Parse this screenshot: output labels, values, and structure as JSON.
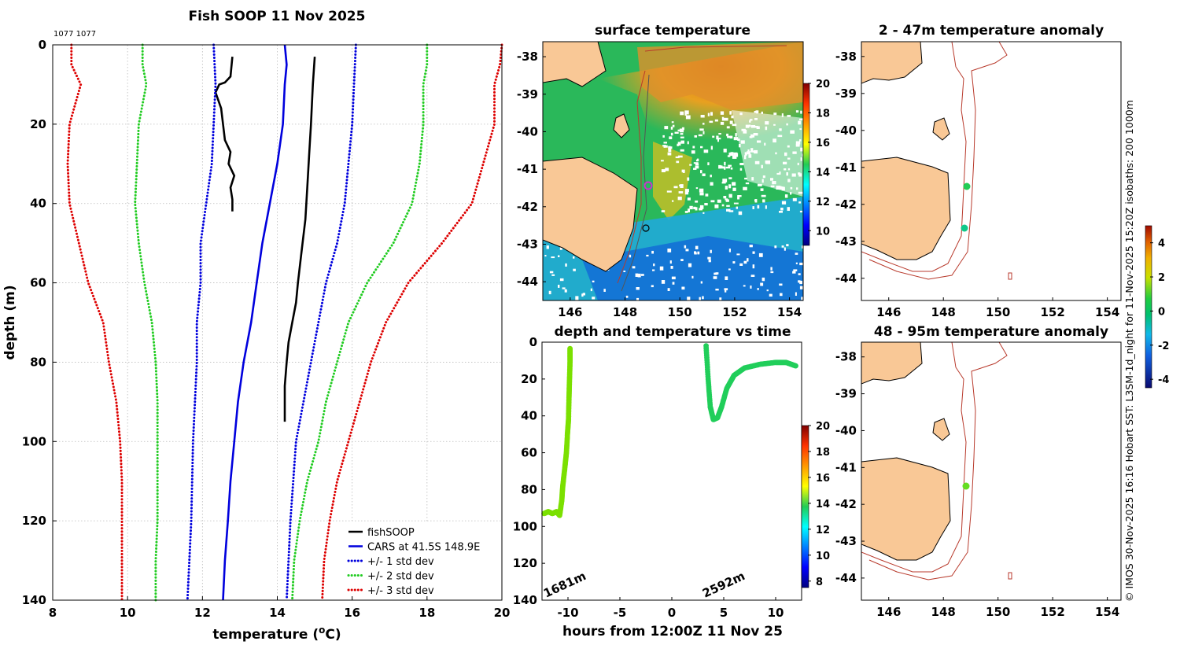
{
  "chart_data": [
    {
      "id": "profile",
      "type": "line",
      "title": "Fish SOOP 11 Nov 2025",
      "corner_note": "1077 1077",
      "xlabel": "temperature (°C)",
      "xlabel_main": "temperature (",
      "xlabel_sup": "o",
      "xlabel_tail": "C)",
      "ylabel": "depth (m)",
      "xlim": [
        8,
        20
      ],
      "ylim": [
        0,
        140
      ],
      "y_reversed": true,
      "xticks": [
        "8",
        "10",
        "12",
        "14",
        "16",
        "18",
        "20"
      ],
      "yticks": [
        "0",
        "20",
        "40",
        "60",
        "80",
        "100",
        "120",
        "140"
      ],
      "grid": true,
      "legend_position": "bottom-right",
      "legend": [
        {
          "label": "fishSOOP",
          "color": "#000000",
          "style": "solid"
        },
        {
          "label": "CARS at 41.5S 148.9E",
          "color": "#0000dd",
          "style": "solid"
        },
        {
          "label": "+/- 1 std dev",
          "color": "#0000dd",
          "style": "dotted"
        },
        {
          "label": "+/- 2 std dev",
          "color": "#22cc22",
          "style": "dotted"
        },
        {
          "label": "+/- 3 std dev",
          "color": "#dd0000",
          "style": "dotted"
        }
      ],
      "series": [
        {
          "name": "fishSOOP profile 1",
          "color": "#000000",
          "style": "solid",
          "points": [
            [
              12.8,
              3
            ],
            [
              12.75,
              8
            ],
            [
              12.6,
              9.5
            ],
            [
              12.45,
              10
            ],
            [
              12.35,
              12
            ],
            [
              12.5,
              16
            ],
            [
              12.55,
              20
            ],
            [
              12.6,
              24
            ],
            [
              12.75,
              27
            ],
            [
              12.7,
              30
            ],
            [
              12.85,
              33
            ],
            [
              12.75,
              36
            ],
            [
              12.8,
              39
            ],
            [
              12.8,
              42
            ]
          ]
        },
        {
          "name": "fishSOOP profile 2",
          "color": "#000000",
          "style": "solid",
          "points": [
            [
              15.0,
              3
            ],
            [
              14.95,
              10
            ],
            [
              14.9,
              20
            ],
            [
              14.85,
              28
            ],
            [
              14.8,
              36
            ],
            [
              14.75,
              44
            ],
            [
              14.65,
              52
            ],
            [
              14.55,
              60
            ],
            [
              14.5,
              65
            ],
            [
              14.4,
              70
            ],
            [
              14.3,
              75
            ],
            [
              14.25,
              80
            ],
            [
              14.2,
              86
            ],
            [
              14.2,
              92
            ],
            [
              14.2,
              95
            ]
          ]
        },
        {
          "name": "CARS mean",
          "color": "#0000dd",
          "style": "solid",
          "points": [
            [
              14.2,
              0
            ],
            [
              14.25,
              5
            ],
            [
              14.2,
              10
            ],
            [
              14.15,
              20
            ],
            [
              14.0,
              30
            ],
            [
              13.8,
              40
            ],
            [
              13.6,
              50
            ],
            [
              13.45,
              60
            ],
            [
              13.3,
              70
            ],
            [
              13.1,
              80
            ],
            [
              12.95,
              90
            ],
            [
              12.85,
              100
            ],
            [
              12.75,
              110
            ],
            [
              12.68,
              120
            ],
            [
              12.6,
              130
            ],
            [
              12.55,
              140
            ]
          ]
        },
        {
          "name": "+1 std dev",
          "color": "#0000dd",
          "style": "dotted",
          "points": [
            [
              16.1,
              0
            ],
            [
              16.05,
              10
            ],
            [
              16.0,
              20
            ],
            [
              15.9,
              30
            ],
            [
              15.8,
              40
            ],
            [
              15.6,
              50
            ],
            [
              15.3,
              60
            ],
            [
              15.1,
              70
            ],
            [
              14.9,
              80
            ],
            [
              14.7,
              90
            ],
            [
              14.5,
              100
            ],
            [
              14.35,
              120
            ],
            [
              14.3,
              130
            ],
            [
              14.25,
              140
            ]
          ]
        },
        {
          "name": "-1 std dev",
          "color": "#0000dd",
          "style": "dotted",
          "points": [
            [
              12.3,
              0
            ],
            [
              12.35,
              10
            ],
            [
              12.3,
              20
            ],
            [
              12.25,
              30
            ],
            [
              12.1,
              40
            ],
            [
              11.95,
              50
            ],
            [
              11.95,
              60
            ],
            [
              11.85,
              70
            ],
            [
              11.85,
              80
            ],
            [
              11.8,
              90
            ],
            [
              11.75,
              100
            ],
            [
              11.7,
              120
            ],
            [
              11.65,
              130
            ],
            [
              11.6,
              140
            ]
          ]
        },
        {
          "name": "+2 std dev",
          "color": "#22cc22",
          "style": "dotted",
          "points": [
            [
              18.0,
              0
            ],
            [
              18.0,
              5
            ],
            [
              17.9,
              10
            ],
            [
              17.9,
              20
            ],
            [
              17.8,
              30
            ],
            [
              17.6,
              40
            ],
            [
              17.1,
              50
            ],
            [
              16.4,
              60
            ],
            [
              15.9,
              70
            ],
            [
              15.6,
              80
            ],
            [
              15.3,
              90
            ],
            [
              15.1,
              100
            ],
            [
              14.8,
              110
            ],
            [
              14.6,
              120
            ],
            [
              14.45,
              130
            ],
            [
              14.4,
              140
            ]
          ]
        },
        {
          "name": "-2 std dev",
          "color": "#22cc22",
          "style": "dotted",
          "points": [
            [
              10.4,
              0
            ],
            [
              10.4,
              5
            ],
            [
              10.5,
              10
            ],
            [
              10.3,
              20
            ],
            [
              10.25,
              30
            ],
            [
              10.2,
              40
            ],
            [
              10.3,
              50
            ],
            [
              10.45,
              60
            ],
            [
              10.65,
              70
            ],
            [
              10.75,
              80
            ],
            [
              10.8,
              90
            ],
            [
              10.8,
              100
            ],
            [
              10.8,
              120
            ],
            [
              10.75,
              130
            ],
            [
              10.75,
              140
            ]
          ]
        },
        {
          "name": "+3 std dev",
          "color": "#dd0000",
          "style": "dotted",
          "points": [
            [
              20.0,
              0
            ],
            [
              19.95,
              5
            ],
            [
              19.8,
              10
            ],
            [
              19.8,
              20
            ],
            [
              19.5,
              30
            ],
            [
              19.2,
              40
            ],
            [
              18.4,
              50
            ],
            [
              17.5,
              60
            ],
            [
              16.9,
              70
            ],
            [
              16.5,
              80
            ],
            [
              16.2,
              90
            ],
            [
              15.9,
              100
            ],
            [
              15.6,
              110
            ],
            [
              15.4,
              120
            ],
            [
              15.25,
              130
            ],
            [
              15.2,
              140
            ]
          ]
        },
        {
          "name": "-3 std dev",
          "color": "#dd0000",
          "style": "dotted",
          "points": [
            [
              8.5,
              0
            ],
            [
              8.5,
              5
            ],
            [
              8.75,
              10
            ],
            [
              8.45,
              20
            ],
            [
              8.4,
              30
            ],
            [
              8.45,
              40
            ],
            [
              8.7,
              50
            ],
            [
              8.95,
              60
            ],
            [
              9.35,
              70
            ],
            [
              9.5,
              80
            ],
            [
              9.7,
              90
            ],
            [
              9.8,
              100
            ],
            [
              9.85,
              110
            ],
            [
              9.85,
              120
            ],
            [
              9.85,
              130
            ],
            [
              9.85,
              140
            ]
          ]
        }
      ]
    },
    {
      "id": "sst_map",
      "type": "heatmap",
      "title": "surface temperature",
      "xlim": [
        145,
        154.5
      ],
      "ylim": [
        -44.5,
        -37.6
      ],
      "xticks": [
        "146",
        "148",
        "150",
        "152",
        "154"
      ],
      "yticks": [
        "-38",
        "-39",
        "-40",
        "-41",
        "-42",
        "-43",
        "-44"
      ],
      "colorbar": {
        "min": 9,
        "max": 20,
        "ticks": [
          "20",
          "18",
          "16",
          "14",
          "12",
          "10"
        ]
      },
      "markers": [
        {
          "name": "magenta fish position",
          "lon": 148.9,
          "lat": -41.5,
          "color": "#cc33cc"
        },
        {
          "name": "ring marker",
          "lon": 148.8,
          "lat": -42.6,
          "color": "#000000"
        }
      ]
    },
    {
      "id": "time_series",
      "type": "scatter",
      "title": "depth and temperature vs time",
      "xlabel": "hours from 12:00Z 11 Nov 25",
      "xlim": [
        -12.5,
        12.5
      ],
      "ylim": [
        0,
        140
      ],
      "y_reversed": true,
      "xticks": [
        "-10",
        "-5",
        "0",
        "5",
        "10"
      ],
      "yticks": [
        "0",
        "20",
        "40",
        "60",
        "80",
        "100",
        "120",
        "140"
      ],
      "colorbar": {
        "min": 7.5,
        "max": 20,
        "ticks": [
          "20",
          "18",
          "16",
          "14",
          "12",
          "10",
          "8"
        ]
      },
      "annotations": [
        {
          "text": "1681m",
          "x": -12.2,
          "y": 139
        },
        {
          "text": "2592m",
          "x": 3.0,
          "y": 139
        }
      ],
      "series": [
        {
          "name": "dive 1",
          "temperature": 14.6,
          "points": [
            [
              -12.3,
              93
            ],
            [
              -11.9,
              92
            ],
            [
              -11.5,
              93
            ],
            [
              -11.1,
              92
            ],
            [
              -10.8,
              94
            ],
            [
              -10.6,
              86
            ],
            [
              -10.5,
              78
            ],
            [
              -10.3,
              68
            ],
            [
              -10.15,
              60
            ],
            [
              -10.05,
              50
            ],
            [
              -9.95,
              42
            ],
            [
              -9.9,
              30
            ],
            [
              -9.85,
              20
            ],
            [
              -9.8,
              10
            ],
            [
              -9.8,
              3
            ]
          ]
        },
        {
          "name": "dive 2",
          "temperature": 13.7,
          "points": [
            [
              3.3,
              2
            ],
            [
              3.5,
              20
            ],
            [
              3.7,
              35
            ],
            [
              4.0,
              42
            ],
            [
              4.4,
              41
            ],
            [
              4.8,
              35
            ],
            [
              5.3,
              25
            ],
            [
              6.0,
              18
            ],
            [
              7.0,
              14
            ],
            [
              8.5,
              12
            ],
            [
              10.0,
              11
            ],
            [
              11.0,
              11
            ],
            [
              12.0,
              13
            ]
          ]
        }
      ]
    },
    {
      "id": "anom_2_47",
      "type": "scatter",
      "title": "2 - 47m temperature anomaly",
      "xlim": [
        145,
        154.5
      ],
      "ylim": [
        -44.6,
        -37.6
      ],
      "xticks": [
        "146",
        "148",
        "150",
        "152",
        "154"
      ],
      "yticks": [
        "-38",
        "-39",
        "-40",
        "-41",
        "-42",
        "-43",
        "-44"
      ],
      "points": [
        {
          "lon": 148.9,
          "lat": -41.5,
          "anomaly": 0.3
        },
        {
          "lon": 148.8,
          "lat": -42.6,
          "anomaly": -0.4
        }
      ]
    },
    {
      "id": "anom_48_95",
      "type": "scatter",
      "title": "48 - 95m temperature anomaly",
      "xlim": [
        145,
        154.5
      ],
      "ylim": [
        -44.6,
        -37.6
      ],
      "xticks": [
        "146",
        "148",
        "150",
        "152",
        "154"
      ],
      "yticks": [
        "-38",
        "-39",
        "-40",
        "-41",
        "-42",
        "-43",
        "-44"
      ],
      "points": [
        {
          "lon": 148.8,
          "lat": -41.5,
          "anomaly": 0.9
        }
      ]
    },
    {
      "id": "anomaly_colorbar",
      "type": "colorbar",
      "min": -4.5,
      "max": 5,
      "ticks": [
        "4",
        "2",
        "0",
        "-2",
        "-4"
      ]
    }
  ],
  "footer_note": "© IMOS 30-Nov-2025 16:16 Hobart SST: L3SM-1d_night for 11-Nov-2025 15:20Z isobaths: 200  1000m",
  "colors": {
    "land": "#f9c896",
    "coast": "#000000",
    "isobath": "#b83a2c",
    "axis": "#000000",
    "grid": "#bbbbbb"
  }
}
